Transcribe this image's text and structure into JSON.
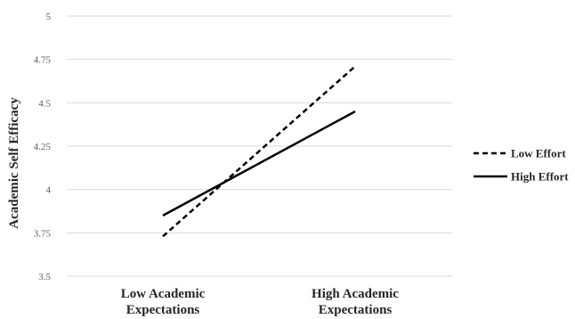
{
  "chart_data": {
    "type": "line",
    "title": "",
    "xlabel": "",
    "ylabel": "Academic Self Efficacy",
    "categories": [
      [
        "Low Academic",
        "Expectations"
      ],
      [
        "High Academic",
        "Expectations"
      ]
    ],
    "series": [
      {
        "name": "Low Effort",
        "style": "dashed",
        "color": "#000000",
        "values": [
          3.73,
          4.71
        ]
      },
      {
        "name": "High Effort",
        "style": "solid",
        "color": "#000000",
        "values": [
          3.85,
          4.45
        ]
      }
    ],
    "yticks": [
      "3.5",
      "3.75",
      "4",
      "4.25",
      "4.5",
      "4.75",
      "5"
    ],
    "ylim": [
      3.5,
      5
    ],
    "grid": true,
    "grid_color": "#d9d9d9",
    "legend_position": "right"
  }
}
